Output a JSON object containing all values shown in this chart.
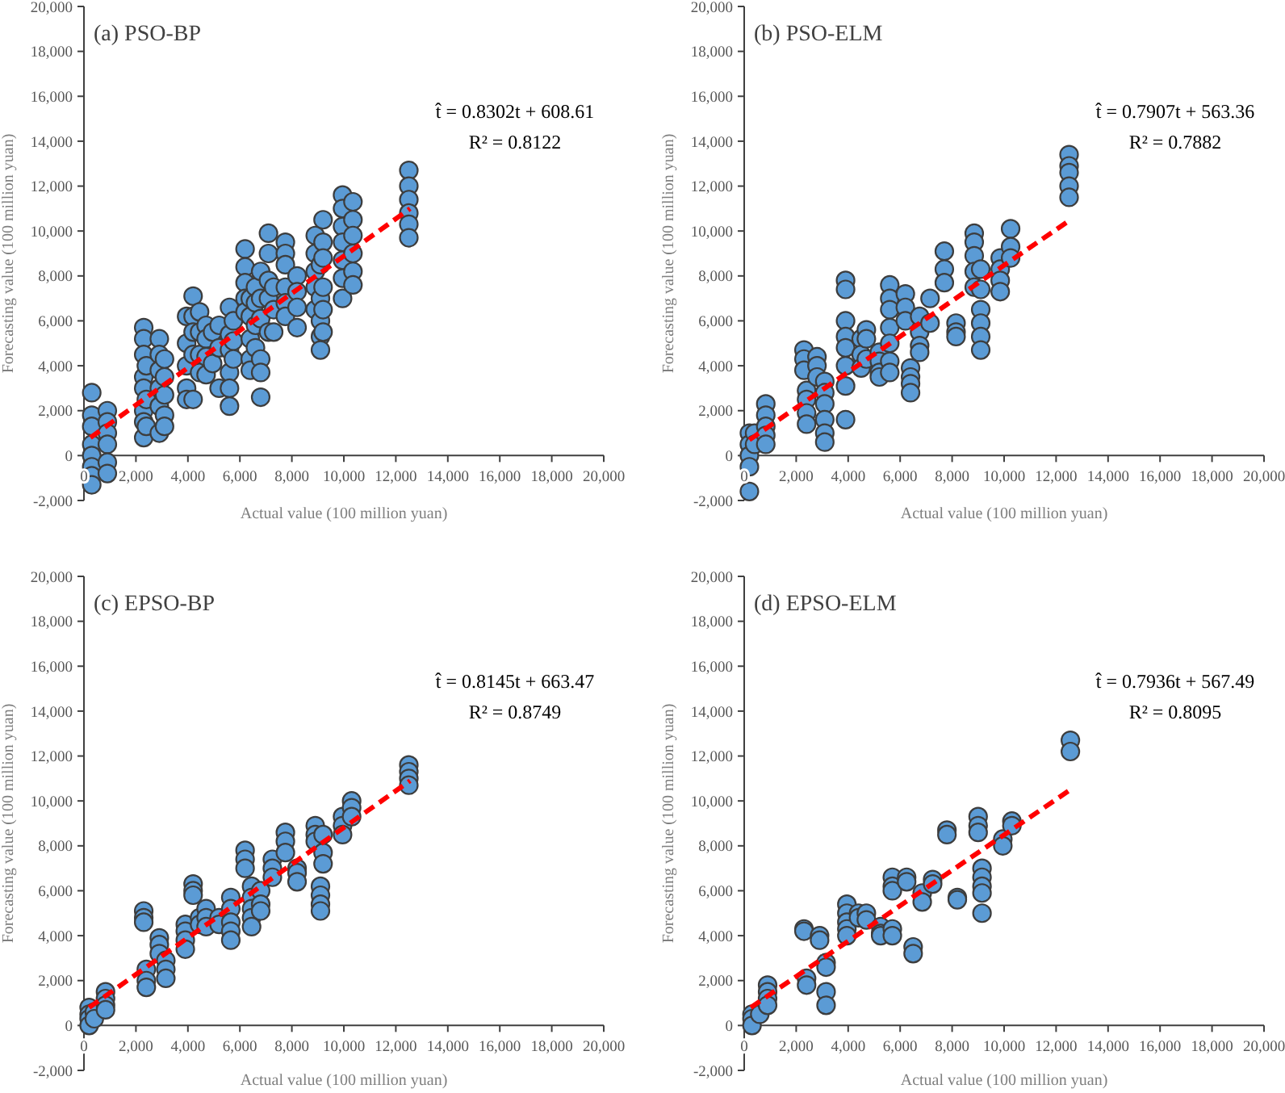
{
  "chart_data": [
    {
      "type": "scatter",
      "title": "(a) PSO-BP",
      "xlabel": "Actual value (100 million yuan)",
      "ylabel": "Forecasting value (100 million yuan)",
      "xlim": [
        0,
        20000
      ],
      "ylim": [
        -2000,
        20000
      ],
      "xticks": [
        {
          "value": 0,
          "label": "0"
        },
        {
          "value": 2000,
          "label": "2,000"
        },
        {
          "value": 4000,
          "label": "4,000"
        },
        {
          "value": 6000,
          "label": "6,000"
        },
        {
          "value": 8000,
          "label": "8,000"
        },
        {
          "value": 10000,
          "label": "10,000"
        },
        {
          "value": 12000,
          "label": "12,000"
        },
        {
          "value": 14000,
          "label": "14,000"
        },
        {
          "value": 16000,
          "label": "16,000"
        },
        {
          "value": 18000,
          "label": "18,000"
        },
        {
          "value": 20000,
          "label": "20,000"
        }
      ],
      "yticks": [
        {
          "value": -2000,
          "label": "-2,000"
        },
        {
          "value": 0,
          "label": "0"
        },
        {
          "value": 2000,
          "label": "2,000"
        },
        {
          "value": 4000,
          "label": "4,000"
        },
        {
          "value": 6000,
          "label": "6,000"
        },
        {
          "value": 8000,
          "label": "8,000"
        },
        {
          "value": 10000,
          "label": "10,000"
        },
        {
          "value": 12000,
          "label": "12,000"
        },
        {
          "value": 14000,
          "label": "14,000"
        },
        {
          "value": 16000,
          "label": "16,000"
        },
        {
          "value": 18000,
          "label": "18,000"
        },
        {
          "value": 20000,
          "label": "20,000"
        }
      ],
      "annotations": [
        "t̂ = 0.8302t + 608.61",
        "R² = 0.8122"
      ],
      "series": [
        {
          "color": "#5b9bd5",
          "marker": "circle",
          "x": [
            300,
            300,
            300,
            300,
            300,
            300,
            300,
            300,
            900,
            900,
            900,
            900,
            900,
            900,
            2300,
            2300,
            2300,
            2300,
            2300,
            2300,
            2300,
            2300,
            2400,
            2400,
            2400,
            2900,
            2900,
            2900,
            2900,
            2900,
            2900,
            3100,
            3100,
            3100,
            3100,
            3100,
            3950,
            3950,
            3950,
            3950,
            3950,
            4200,
            4200,
            4200,
            4200,
            4200,
            4450,
            4450,
            4450,
            4450,
            4700,
            4700,
            4700,
            4700,
            4950,
            4950,
            5200,
            5200,
            5200,
            5600,
            5600,
            5600,
            5600,
            5600,
            5600,
            5750,
            5750,
            5750,
            6200,
            6200,
            6200,
            6200,
            6200,
            6400,
            6400,
            6400,
            6400,
            6400,
            6600,
            6600,
            6600,
            6600,
            6800,
            6800,
            6800,
            6800,
            6800,
            6800,
            7100,
            7100,
            7100,
            7100,
            7100,
            7300,
            7300,
            7300,
            7750,
            7750,
            7750,
            7750,
            7750,
            7750,
            8200,
            8200,
            8200,
            8200,
            8900,
            8900,
            8900,
            8900,
            8900,
            9100,
            9100,
            9100,
            9100,
            9100,
            9200,
            9200,
            9200,
            9200,
            9200,
            9200,
            9950,
            9950,
            9950,
            9950,
            9950,
            9950,
            9950,
            10350,
            10350,
            10350,
            10350,
            10350,
            10350,
            12500,
            12500,
            12500,
            12500,
            12500,
            12500
          ],
          "values": [
            2800,
            1800,
            1300,
            500,
            0,
            -500,
            -900,
            -1300,
            2000,
            1500,
            1000,
            500,
            -300,
            -800,
            5700,
            5200,
            4500,
            3500,
            3000,
            2000,
            1500,
            800,
            4000,
            2500,
            1300,
            5200,
            4500,
            3800,
            3000,
            2200,
            1000,
            4300,
            3500,
            2700,
            1800,
            1300,
            6200,
            5000,
            4000,
            3000,
            2500,
            7100,
            6200,
            5500,
            4500,
            2500,
            6400,
            5500,
            4500,
            3700,
            5800,
            5200,
            4400,
            3600,
            5500,
            4100,
            5800,
            4800,
            3000,
            6600,
            5400,
            4700,
            3700,
            3000,
            2200,
            6000,
            5100,
            4300,
            9200,
            8400,
            7700,
            7000,
            6400,
            7000,
            6200,
            5200,
            4300,
            3800,
            7500,
            6800,
            5800,
            4800,
            8200,
            7000,
            6100,
            4300,
            3700,
            2600,
            9900,
            9000,
            7800,
            7000,
            5500,
            7500,
            6500,
            5500,
            9500,
            9000,
            8500,
            7500,
            6800,
            6200,
            8000,
            7300,
            6600,
            5700,
            9800,
            9000,
            8200,
            7500,
            6500,
            8500,
            7000,
            6000,
            5300,
            4700,
            10500,
            9500,
            8800,
            7500,
            6500,
            5500,
            11600,
            11000,
            10200,
            9500,
            8700,
            7900,
            7000,
            11300,
            10500,
            9800,
            9000,
            8200,
            7600,
            12700,
            12000,
            11400,
            10800,
            10300,
            9700
          ]
        },
        {
          "type": "line",
          "color": "#ff0000",
          "line_style": "dashed",
          "x": [
            250,
            12550
          ],
          "values": [
            800,
            11000
          ]
        }
      ]
    },
    {
      "type": "scatter",
      "title": "(b) PSO-ELM",
      "xlabel": "Actual value (100 million yuan)",
      "ylabel": "Forecasting value (100 million yuan)",
      "xlim": [
        0,
        20000
      ],
      "ylim": [
        -2000,
        20000
      ],
      "xticks": [
        {
          "value": 0,
          "label": "0"
        },
        {
          "value": 2000,
          "label": "2,000"
        },
        {
          "value": 4000,
          "label": "4,000"
        },
        {
          "value": 6000,
          "label": "6,000"
        },
        {
          "value": 8000,
          "label": "8,000"
        },
        {
          "value": 10000,
          "label": "10,000"
        },
        {
          "value": 12000,
          "label": "12,000"
        },
        {
          "value": 14000,
          "label": "14,000"
        },
        {
          "value": 16000,
          "label": "16,000"
        },
        {
          "value": 18000,
          "label": "18,000"
        },
        {
          "value": 20000,
          "label": "20,000"
        }
      ],
      "yticks": [
        {
          "value": -2000,
          "label": "-2,000"
        },
        {
          "value": 0,
          "label": "0"
        },
        {
          "value": 2000,
          "label": "2,000"
        },
        {
          "value": 4000,
          "label": "4,000"
        },
        {
          "value": 6000,
          "label": "6,000"
        },
        {
          "value": 8000,
          "label": "8,000"
        },
        {
          "value": 10000,
          "label": "10,000"
        },
        {
          "value": 12000,
          "label": "12,000"
        },
        {
          "value": 14000,
          "label": "14,000"
        },
        {
          "value": 16000,
          "label": "16,000"
        },
        {
          "value": 18000,
          "label": "18,000"
        },
        {
          "value": 20000,
          "label": "20,000"
        }
      ],
      "annotations": [
        "t̂ = 0.7907t + 563.36",
        "R² = 0.7882"
      ],
      "series": [
        {
          "color": "#5b9bd5",
          "marker": "circle",
          "x": [
            200,
            200,
            200,
            200,
            200,
            400,
            400,
            830,
            830,
            830,
            830,
            830,
            2300,
            2300,
            2300,
            2400,
            2400,
            2400,
            2400,
            2800,
            2800,
            2800,
            3100,
            3100,
            3100,
            3100,
            3100,
            3100,
            3900,
            3900,
            3900,
            3900,
            3900,
            3900,
            3900,
            3900,
            4500,
            4500,
            4500,
            4700,
            4700,
            4700,
            5200,
            5200,
            5200,
            5200,
            5600,
            5600,
            5600,
            5600,
            5600,
            5600,
            5600,
            6200,
            6200,
            6200,
            6400,
            6400,
            6400,
            6400,
            6750,
            6750,
            6750,
            6750,
            7150,
            7150,
            7700,
            7700,
            7700,
            8150,
            8150,
            8150,
            8850,
            8850,
            8850,
            8850,
            8850,
            9100,
            9100,
            9100,
            9100,
            9100,
            9100,
            9850,
            9850,
            9850,
            9850,
            10250,
            10250,
            10250,
            12500,
            12500,
            12500,
            12500,
            12500
          ],
          "values": [
            1000,
            500,
            0,
            -500,
            -1600,
            1000,
            500,
            2300,
            1800,
            1300,
            900,
            500,
            4700,
            4300,
            3800,
            2900,
            2500,
            1900,
            1400,
            4400,
            4000,
            3500,
            3300,
            2800,
            2300,
            1600,
            1000,
            600,
            7800,
            7400,
            6000,
            5300,
            4800,
            4000,
            3100,
            1600,
            5200,
            4500,
            3900,
            5600,
            5200,
            4300,
            4600,
            4200,
            3700,
            3500,
            7600,
            7000,
            6500,
            5700,
            5000,
            4200,
            3700,
            7200,
            6600,
            6000,
            3900,
            3500,
            3200,
            2800,
            6200,
            5500,
            4900,
            4600,
            7000,
            5900,
            9100,
            8300,
            7700,
            5900,
            5500,
            5300,
            9900,
            9500,
            8900,
            8200,
            7500,
            8300,
            7400,
            6500,
            5900,
            5300,
            4700,
            8800,
            8300,
            7800,
            7300,
            10100,
            9300,
            8800,
            13400,
            12900,
            12600,
            12000,
            11500
          ]
        },
        {
          "type": "line",
          "color": "#ff0000",
          "line_style": "dashed",
          "x": [
            200,
            12550
          ],
          "values": [
            700,
            10500
          ]
        }
      ]
    },
    {
      "type": "scatter",
      "title": "(c) EPSO-BP",
      "xlabel": "Actual value (100 million yuan)",
      "ylabel": "Forecasting value (100 million yuan)",
      "xlim": [
        0,
        20000
      ],
      "ylim": [
        -2000,
        20000
      ],
      "xticks": [
        {
          "value": 0,
          "label": "0"
        },
        {
          "value": 2000,
          "label": "2,000"
        },
        {
          "value": 4000,
          "label": "4,000"
        },
        {
          "value": 6000,
          "label": "6,000"
        },
        {
          "value": 8000,
          "label": "8,000"
        },
        {
          "value": 10000,
          "label": "10,000"
        },
        {
          "value": 12000,
          "label": "12,000"
        },
        {
          "value": 14000,
          "label": "14,000"
        },
        {
          "value": 16000,
          "label": "16,000"
        },
        {
          "value": 18000,
          "label": "18,000"
        },
        {
          "value": 20000,
          "label": "20,000"
        }
      ],
      "yticks": [
        {
          "value": -2000,
          "label": "-2,000"
        },
        {
          "value": 0,
          "label": "0"
        },
        {
          "value": 2000,
          "label": "2,000"
        },
        {
          "value": 4000,
          "label": "4,000"
        },
        {
          "value": 6000,
          "label": "6,000"
        },
        {
          "value": 8000,
          "label": "8,000"
        },
        {
          "value": 10000,
          "label": "10,000"
        },
        {
          "value": 12000,
          "label": "12,000"
        },
        {
          "value": 14000,
          "label": "14,000"
        },
        {
          "value": 16000,
          "label": "16,000"
        },
        {
          "value": 18000,
          "label": "18,000"
        },
        {
          "value": 20000,
          "label": "20,000"
        }
      ],
      "annotations": [
        "t̂ = 0.8145t + 663.47",
        "R² = 0.8749"
      ],
      "series": [
        {
          "color": "#5b9bd5",
          "marker": "circle",
          "x": [
            200,
            200,
            200,
            200,
            400,
            400,
            830,
            830,
            830,
            830,
            2300,
            2300,
            2300,
            2400,
            2400,
            2400,
            2900,
            2900,
            2900,
            3150,
            3150,
            3150,
            3900,
            3900,
            3900,
            3900,
            4200,
            4200,
            4200,
            4450,
            4450,
            4700,
            4700,
            4700,
            5200,
            5200,
            5650,
            5650,
            5650,
            5650,
            5650,
            6200,
            6200,
            6200,
            6450,
            6450,
            6450,
            6450,
            6450,
            6800,
            6800,
            6800,
            7250,
            7250,
            7250,
            7750,
            7750,
            7750,
            8200,
            8200,
            8200,
            8900,
            8900,
            8900,
            9100,
            9100,
            9100,
            9100,
            9200,
            9200,
            9200,
            9950,
            9950,
            9950,
            10300,
            10300,
            10300,
            12500,
            12500,
            12500,
            12500
          ],
          "values": [
            800,
            500,
            300,
            0,
            600,
            300,
            1500,
            1200,
            900,
            700,
            5100,
            4800,
            4600,
            2500,
            2000,
            1700,
            3900,
            3600,
            3200,
            2900,
            2500,
            2100,
            4500,
            4200,
            3800,
            3400,
            6300,
            6000,
            5800,
            4800,
            4500,
            5200,
            4800,
            4400,
            4800,
            4500,
            5700,
            5200,
            4600,
            4200,
            3800,
            7800,
            7400,
            7000,
            6200,
            5700,
            5200,
            4800,
            4400,
            6000,
            5400,
            5100,
            7400,
            7000,
            6600,
            8600,
            8200,
            7700,
            7000,
            6800,
            6400,
            8900,
            8500,
            8200,
            6200,
            5800,
            5400,
            5100,
            8500,
            7700,
            7200,
            9300,
            8900,
            8500,
            10000,
            9700,
            9300,
            11600,
            11300,
            11000,
            10700
          ]
        },
        {
          "type": "line",
          "color": "#ff0000",
          "line_style": "dashed",
          "x": [
            200,
            12550
          ],
          "values": [
            800,
            10900
          ]
        }
      ]
    },
    {
      "type": "scatter",
      "title": "(d) EPSO-ELM",
      "xlabel": "Actual value (100 million yuan)",
      "ylabel": "Forecasting value (100 million yuan)",
      "xlim": [
        0,
        20000
      ],
      "ylim": [
        -2000,
        20000
      ],
      "xticks": [
        {
          "value": 0,
          "label": "0"
        },
        {
          "value": 2000,
          "label": "2,000"
        },
        {
          "value": 4000,
          "label": "4,000"
        },
        {
          "value": 6000,
          "label": "6,000"
        },
        {
          "value": 8000,
          "label": "8,000"
        },
        {
          "value": 10000,
          "label": "10,000"
        },
        {
          "value": 12000,
          "label": "12,000"
        },
        {
          "value": 14000,
          "label": "14,000"
        },
        {
          "value": 16000,
          "label": "16,000"
        },
        {
          "value": 18000,
          "label": "18,000"
        },
        {
          "value": 20000,
          "label": "20,000"
        }
      ],
      "yticks": [
        {
          "value": -2000,
          "label": "-2,000"
        },
        {
          "value": 0,
          "label": "0"
        },
        {
          "value": 2000,
          "label": "2,000"
        },
        {
          "value": 4000,
          "label": "4,000"
        },
        {
          "value": 6000,
          "label": "6,000"
        },
        {
          "value": 8000,
          "label": "8,000"
        },
        {
          "value": 10000,
          "label": "10,000"
        },
        {
          "value": 12000,
          "label": "12,000"
        },
        {
          "value": 14000,
          "label": "14,000"
        },
        {
          "value": 16000,
          "label": "16,000"
        },
        {
          "value": 18000,
          "label": "18,000"
        },
        {
          "value": 20000,
          "label": "20,000"
        }
      ],
      "annotations": [
        "t̂ = 0.7936t + 567.49",
        "R² = 0.8095"
      ],
      "series": [
        {
          "color": "#5b9bd5",
          "marker": "circle",
          "x": [
            300,
            300,
            300,
            600,
            900,
            900,
            900,
            900,
            2300,
            2300,
            2400,
            2400,
            2900,
            2900,
            3150,
            3150,
            3150,
            3150,
            3950,
            3950,
            3950,
            3950,
            3950,
            4400,
            4400,
            4700,
            4700,
            5250,
            5250,
            5250,
            5700,
            5700,
            5700,
            5700,
            5700,
            6250,
            6250,
            6500,
            6500,
            6850,
            6850,
            7250,
            7250,
            7800,
            7800,
            8200,
            8200,
            9000,
            9000,
            9000,
            9150,
            9150,
            9150,
            9150,
            9150,
            9950,
            9950,
            10300,
            10300,
            12550,
            12550
          ],
          "values": [
            500,
            300,
            0,
            500,
            1800,
            1500,
            1200,
            900,
            4300,
            4200,
            2100,
            1800,
            4000,
            3800,
            2800,
            2600,
            1500,
            900,
            5400,
            5000,
            4600,
            4300,
            4000,
            5000,
            4800,
            5000,
            4700,
            4400,
            4100,
            4000,
            6600,
            6200,
            6000,
            4300,
            4000,
            6600,
            6400,
            3500,
            3200,
            5900,
            5500,
            6500,
            6300,
            8700,
            8500,
            5700,
            5600,
            9300,
            8900,
            8600,
            7000,
            6600,
            6200,
            5900,
            5000,
            8300,
            8000,
            9100,
            8900,
            12700,
            12200
          ]
        },
        {
          "type": "line",
          "color": "#ff0000",
          "line_style": "dashed",
          "x": [
            250,
            12550
          ],
          "values": [
            800,
            10500
          ]
        }
      ]
    }
  ]
}
